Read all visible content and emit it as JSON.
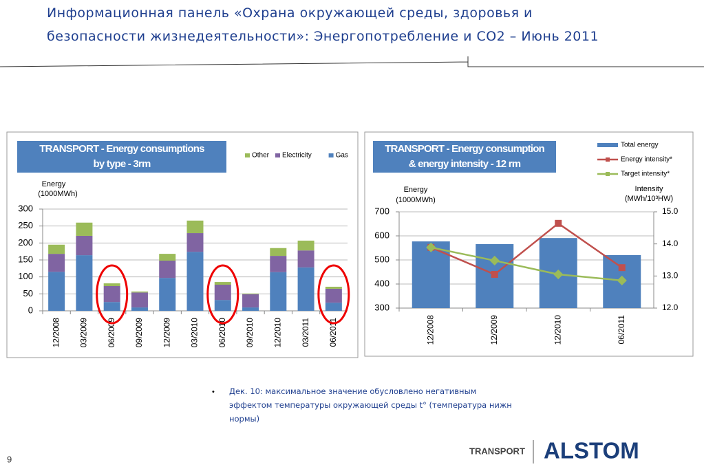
{
  "title": "Информационная панель «Охрана окружающей среды, здоровья и безопасности жизнедеятельности»: Энергопотребление и CO2 – Июнь 2011",
  "note": "Дек. 10: максимальное значение обусловлено негативным эффектом температуры окружающей среды t° (температура нижн нормы)",
  "footer": {
    "division": "TRANSPORT",
    "brand": "ALSTOM",
    "page": "9"
  },
  "chart_data": [
    {
      "type": "bar",
      "stacked": true,
      "title": [
        "TRANSPORT - Energy consumptions",
        "by type - 3rm"
      ],
      "ylabel": [
        "Energy",
        "(1000MWh)"
      ],
      "categories": [
        "12/2008",
        "03/2009",
        "06/2009",
        "09/2009",
        "12/2009",
        "03/2010",
        "06/2010",
        "09/2010",
        "12/2010",
        "03/2011",
        "06/2011"
      ],
      "series": [
        {
          "name": "Gas",
          "color": "#4f81bd",
          "values": [
            115,
            164,
            26,
            10,
            97,
            174,
            32,
            10,
            114,
            128,
            24
          ]
        },
        {
          "name": "Electricity",
          "color": "#8064a2",
          "values": [
            53,
            57,
            47,
            44,
            51,
            55,
            45,
            39,
            48,
            50,
            41
          ]
        },
        {
          "name": "Other",
          "color": "#9bbb59",
          "values": [
            27,
            39,
            8,
            3,
            20,
            37,
            8,
            2,
            23,
            29,
            6
          ]
        }
      ],
      "ylim": [
        0,
        300
      ],
      "yticks": [
        0,
        50,
        100,
        150,
        200,
        250,
        300
      ],
      "grid": true,
      "legend": "top-right"
    },
    {
      "type": "bar",
      "stacked": false,
      "title": [
        "TRANSPORT - Energy consumption",
        "& energy intensity - 12 rm"
      ],
      "ylabel": [
        "Energy",
        "(1000MWh)"
      ],
      "y2label": [
        "Intensity",
        "(MWh/10³HW)"
      ],
      "categories": [
        "12/2008",
        "12/2009",
        "12/2010",
        "06/2011"
      ],
      "series": [
        {
          "name": "Total energy",
          "color": "#4f81bd",
          "values": [
            577,
            566,
            591,
            520
          ]
        },
        {
          "name": "Energy intensity*",
          "type": "line",
          "axis": "y2",
          "color": "#c0504d",
          "values": [
            13.89,
            13.05,
            14.64,
            13.26
          ]
        },
        {
          "name": "Target intensity*",
          "type": "line",
          "axis": "y2",
          "color": "#9bbb59",
          "values": [
            13.89,
            13.48,
            13.05,
            12.86
          ]
        }
      ],
      "ylim": [
        300,
        700
      ],
      "yticks": [
        300,
        400,
        500,
        600,
        700
      ],
      "y2lim": [
        12,
        15
      ],
      "y2ticks": [
        {
          "value": 12,
          "label": "12.0"
        },
        {
          "value": 13,
          "label": "13.0"
        },
        {
          "value": 14,
          "label": "14.0"
        },
        {
          "value": 15,
          "label": "15.0"
        }
      ],
      "grid": true,
      "legend": "top-right"
    }
  ]
}
